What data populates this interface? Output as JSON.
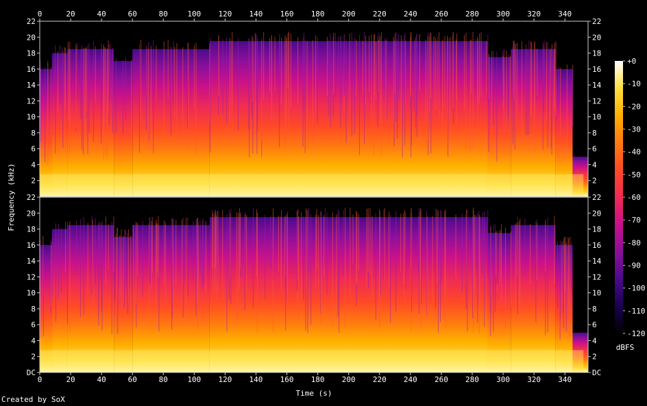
{
  "chart_data": {
    "type": "heatmap",
    "subtype": "spectrogram",
    "channels": 2,
    "xlabel": "Time (s)",
    "ylabel": "Frequency (kHz)",
    "x_ticks": [
      0,
      20,
      40,
      60,
      80,
      100,
      120,
      140,
      160,
      180,
      200,
      220,
      240,
      260,
      280,
      300,
      320,
      340
    ],
    "xlim": [
      0,
      355
    ],
    "y_ticks": [
      2,
      4,
      6,
      8,
      10,
      12,
      14,
      16,
      18,
      20,
      22
    ],
    "y_bottom_label": "DC",
    "ylim_khz": [
      0,
      22
    ],
    "colorbar": {
      "label": "dBFS",
      "ticks": [
        "+0",
        "-10",
        "-20",
        "-30",
        "-40",
        "-50",
        "-60",
        "-70",
        "-80",
        "-90",
        "-100",
        "-110",
        "-120"
      ],
      "range": [
        -120,
        0
      ],
      "colors": [
        "#000000",
        "#1a0050",
        "#4b0a8c",
        "#8a0f9a",
        "#c8108a",
        "#ef2a55",
        "#ff4a26",
        "#ff7a10",
        "#ffb000",
        "#ffe040",
        "#ffffff"
      ]
    },
    "envelope_segments": [
      {
        "t0": 0,
        "t1": 8,
        "max_khz": 16
      },
      {
        "t0": 8,
        "t1": 18,
        "max_khz": 18
      },
      {
        "t0": 18,
        "t1": 48,
        "max_khz": 18.5
      },
      {
        "t0": 48,
        "t1": 60,
        "max_khz": 17
      },
      {
        "t0": 60,
        "t1": 110,
        "max_khz": 18.5
      },
      {
        "t0": 110,
        "t1": 290,
        "max_khz": 19.5
      },
      {
        "t0": 290,
        "t1": 305,
        "max_khz": 17.5
      },
      {
        "t0": 305,
        "t1": 334,
        "max_khz": 18.5
      },
      {
        "t0": 334,
        "t1": 345,
        "max_khz": 16
      },
      {
        "t0": 345,
        "t1": 355,
        "max_khz": 5
      }
    ]
  },
  "footer": {
    "credit": "Created by SoX"
  }
}
